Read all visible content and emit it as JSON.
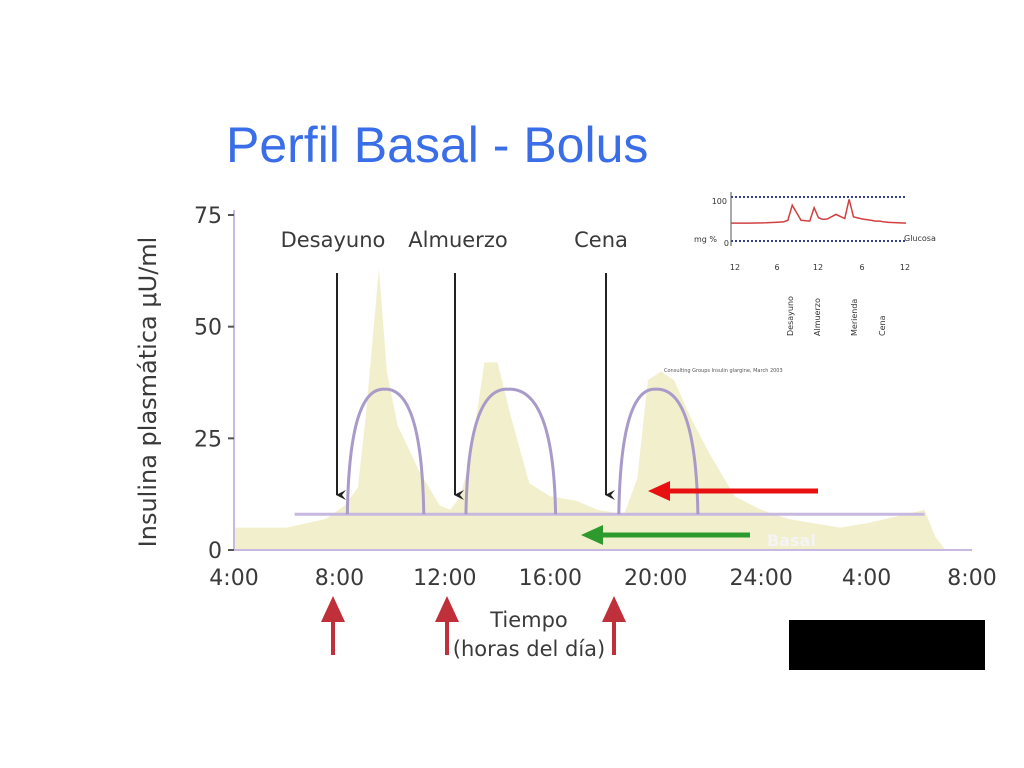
{
  "slide": {
    "title": "Perfil Basal - Bolus",
    "credit": "Consulting Groups Insulin glargine, March 2003",
    "basal_label": "Basal"
  },
  "colors": {
    "title": "#3a6ee8",
    "area_fill": "#f2f0cc",
    "bolus_curve": "#a89bc9",
    "basal_line": "#c7b8e0",
    "meal_arrow": "#c0303a",
    "red_arrow": "#e81010",
    "green_arrow": "#2d9a2d",
    "inset_curve": "#d04040",
    "inset_dots": "#1a237e"
  },
  "chart_data": [
    {
      "type": "area",
      "ylabel": "Insulina plasmática μU/ml",
      "xlabel": "Tiempo",
      "xlabel_sub": "(horas del día)",
      "ylim": [
        0,
        75
      ],
      "yticks": [
        0,
        25,
        50,
        75
      ],
      "ytick_labels": [
        "0",
        "25",
        "50",
        "75"
      ],
      "xlim": [
        4,
        32
      ],
      "xticks": [
        4,
        8,
        12,
        16,
        20,
        24,
        28,
        32
      ],
      "xtick_labels": [
        "4:00",
        "8:00",
        "12:00",
        "16:00",
        "20:00",
        "24:00",
        "4:00",
        "8:00"
      ],
      "grid": false,
      "meals": [
        {
          "label": "Desayuno",
          "x": 8.2
        },
        {
          "label": "Almuerzo",
          "x": 13.0
        },
        {
          "label": "Cena",
          "x": 18.8
        }
      ],
      "meal_arrows_x": [
        8.2,
        12.2,
        18.8
      ],
      "physiologic_profile": {
        "x": [
          4,
          6,
          7.5,
          8.2,
          8.7,
          9.0,
          9.3,
          9.5,
          9.8,
          10.2,
          11,
          11.8,
          12.2,
          12.6,
          13.0,
          13.5,
          14,
          14.5,
          15.2,
          16,
          17,
          17.8,
          18.8,
          19.3,
          19.7,
          20.2,
          20.7,
          21.3,
          22,
          23,
          24,
          25,
          26,
          27,
          28,
          29.5,
          30.2,
          30.6,
          31
        ],
        "y": [
          5,
          5,
          7,
          10,
          14,
          30,
          50,
          63,
          40,
          28,
          18,
          10,
          9,
          12,
          22,
          42,
          42,
          30,
          15,
          12,
          11,
          9,
          8,
          16,
          38,
          40,
          38,
          30,
          22,
          12,
          9,
          7,
          6,
          5,
          6,
          8,
          9,
          3,
          0
        ]
      },
      "bolus_curves": [
        {
          "x_start": 8.3,
          "x_peak": 9.7,
          "x_end": 11.2,
          "peak": 36
        },
        {
          "x_start": 12.8,
          "x_peak": 14.4,
          "x_end": 16.2,
          "peak": 36
        },
        {
          "x_start": 18.6,
          "x_peak": 20.0,
          "x_end": 21.6,
          "peak": 36
        }
      ],
      "basal": {
        "x_start": 6.3,
        "x_end": 30.2,
        "y": 8
      }
    },
    {
      "type": "line",
      "ytick_labels": [
        "100",
        "0"
      ],
      "ylabel": "mg %",
      "series_label": "Glucosa",
      "xtick_labels": [
        "12",
        "6",
        "12",
        "6",
        "12"
      ],
      "events": [
        "Desayuno",
        "Almuerzo",
        "Merienda",
        "Cena"
      ],
      "x": [
        0,
        4,
        8,
        10,
        12,
        13,
        14,
        15,
        16,
        18,
        19,
        20,
        21,
        22,
        24,
        26,
        27,
        28,
        30,
        32,
        33,
        34,
        35,
        36,
        38,
        40
      ],
      "y": [
        45,
        45,
        46,
        47,
        48,
        52,
        88,
        70,
        52,
        50,
        82,
        58,
        54,
        55,
        66,
        56,
        102,
        60,
        55,
        52,
        50,
        50,
        48,
        47,
        46,
        45
      ]
    }
  ]
}
